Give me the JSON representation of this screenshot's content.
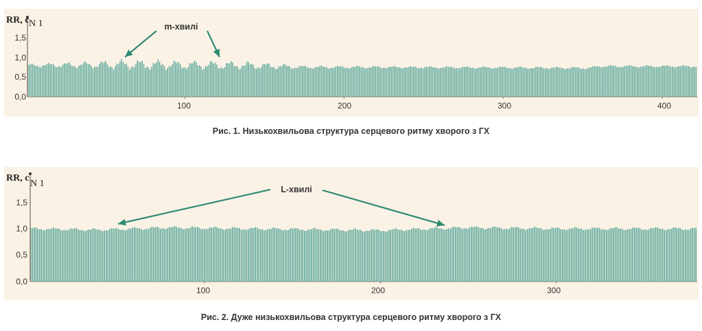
{
  "colors": {
    "bar": "#5aa89a",
    "axis": "#8a7a6c",
    "arrow": "#2e8b73",
    "panel": "#fbf2e6"
  },
  "chart_data": [
    {
      "type": "bar",
      "ylabel": "RR, c",
      "series_label": "N 1",
      "xlim": [
        1,
        422
      ],
      "ylim": [
        0,
        1.7
      ],
      "y_ticks": [
        "0,0",
        "0,5",
        "1,0",
        "1,5"
      ],
      "x_ticks": [
        100,
        200,
        300,
        400
      ],
      "n": 422,
      "y_segments": [
        [
          1,
          0.72
        ],
        [
          60,
          0.74
        ],
        [
          140,
          0.72
        ],
        [
          175,
          0.68
        ],
        [
          220,
          0.68
        ],
        [
          300,
          0.67
        ],
        [
          355,
          0.66
        ],
        [
          360,
          0.7
        ],
        [
          422,
          0.7
        ]
      ],
      "y_wave_amplitude": [
        [
          1,
          0.03
        ],
        [
          40,
          0.06
        ],
        [
          60,
          0.09
        ],
        [
          140,
          0.07
        ],
        [
          175,
          0.03
        ],
        [
          230,
          0.02
        ],
        [
          422,
          0.02
        ]
      ],
      "annotation": "m-хвилі",
      "caption": "Рис. 1. Низькохвильова структура серцевого ритму хворого з ГХ"
    },
    {
      "type": "bar",
      "ylabel": "RR, c",
      "series_label": "N 1",
      "xlim": [
        1,
        380
      ],
      "ylim": [
        0,
        1.8
      ],
      "y_ticks": [
        "0,0",
        "0,5",
        "1,0",
        "1,5"
      ],
      "x_ticks": [
        100,
        200,
        300
      ],
      "n": 380,
      "y_segments": [
        [
          1,
          0.93
        ],
        [
          40,
          0.91
        ],
        [
          80,
          0.95
        ],
        [
          200,
          0.9
        ],
        [
          250,
          0.95
        ],
        [
          300,
          0.93
        ],
        [
          380,
          0.93
        ]
      ],
      "y_wave_amplitude": [
        [
          1,
          0.02
        ],
        [
          380,
          0.02
        ]
      ],
      "annotation": "L-хвилі",
      "caption": "Рис. 2. Дуже низькохвильова структура серцевого ритму хворого з ГХ"
    }
  ]
}
